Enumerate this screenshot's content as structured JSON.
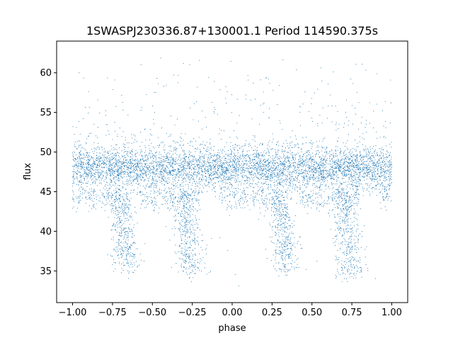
{
  "chart_data": {
    "type": "scatter",
    "title": "1SWASPJ230336.87+130001.1 Period 114590.375s",
    "xlabel": "phase",
    "ylabel": "flux",
    "xlim": [
      -1.1,
      1.1
    ],
    "ylim": [
      31,
      64
    ],
    "xticks": [
      -1.0,
      -0.75,
      -0.5,
      -0.25,
      0.0,
      0.25,
      0.5,
      0.75,
      1.0
    ],
    "xtick_labels": [
      "−1.00",
      "−0.75",
      "−0.50",
      "−0.25",
      "0.00",
      "0.25",
      "0.50",
      "0.75",
      "1.00"
    ],
    "yticks": [
      35,
      40,
      45,
      50,
      55,
      60
    ],
    "ytick_labels": [
      "35",
      "40",
      "45",
      "50",
      "55",
      "60"
    ],
    "grid": false,
    "marker_color": "#1f77b4",
    "features": {
      "main_band": {
        "center": 48,
        "spread": 1.4,
        "phase_range": [
          -1.0,
          1.0
        ]
      },
      "secondary_band": {
        "center": 44.5,
        "spread": 0.6
      },
      "dips": [
        {
          "phase": -0.68,
          "min_flux": 35
        },
        {
          "phase": -0.28,
          "min_flux": 34.5
        },
        {
          "phase": 0.32,
          "min_flux": 35
        },
        {
          "phase": 0.72,
          "min_flux": 34.5
        }
      ]
    }
  }
}
